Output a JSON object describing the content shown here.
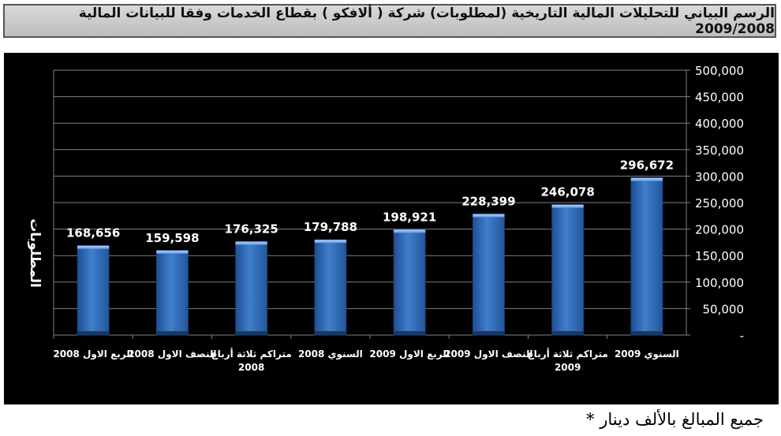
{
  "title": "الرسم البياني للتحليلات المالية التاريخية (لمطلوبات) شركة ( ألافكو ) بقطاع الخدمات وفقا للبيانات المالية 2009/2008",
  "footnote": "جميع المبالغ بالألف دينار *",
  "colors": {
    "bar": "#3f7fcc",
    "background": "#000000",
    "text": "#ffffff",
    "grid": "#808080"
  },
  "chart_data": {
    "type": "bar",
    "title": "الرسم البياني للتحليلات المالية التاريخية (لمطلوبات) شركة ( ألافكو ) بقطاع الخدمات وفقا للبيانات المالية 2009/2008",
    "ylabel": "المطلوبات",
    "xlabel": "",
    "categories": [
      [
        "الربع الاول 2008"
      ],
      [
        "النصف الاول 2008"
      ],
      [
        "متراكم ثلاثة أرباع",
        "2008"
      ],
      [
        "السنوي 2008"
      ],
      [
        "الربع الاول 2009"
      ],
      [
        "النصف الاول 2009"
      ],
      [
        "متراكم ثلاثة أرباع",
        "2009"
      ],
      [
        "السنوي 2009"
      ]
    ],
    "values": [
      168656,
      159598,
      176325,
      179788,
      198921,
      228399,
      246078,
      296672
    ],
    "data_labels": [
      "168,656",
      "159,598",
      "176,325",
      "179,788",
      "198,921",
      "228,399",
      "246,078",
      "296,672"
    ],
    "ylim": [
      0,
      500000
    ],
    "y_ticks": [
      "-",
      "50,000",
      "100,000",
      "150,000",
      "200,000",
      "250,000",
      "300,000",
      "350,000",
      "400,000",
      "450,000",
      "500,000"
    ],
    "grid": true,
    "y_axis_side": "right"
  }
}
